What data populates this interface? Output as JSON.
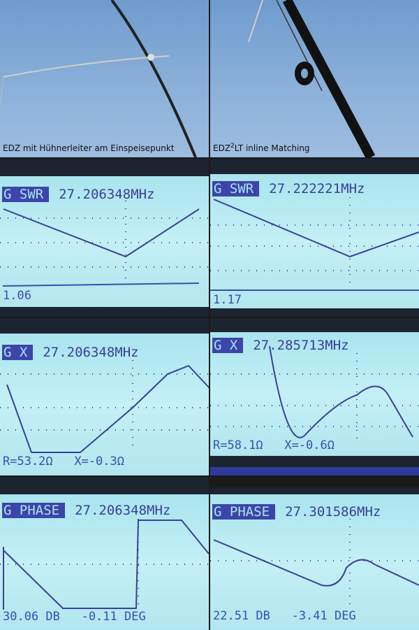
{
  "photos": [
    {
      "caption": "EDZ mit Hühnerleiter am Einspeisepunkt"
    },
    {
      "caption_pre": "EDZ",
      "caption_sup": "2",
      "caption_post": "LT inline Matching"
    }
  ],
  "screens": [
    {
      "mode": "G SWR",
      "freq": "27.206348MHz",
      "footer": "1.06"
    },
    {
      "mode": "G SWR",
      "freq": "27.222221MHz",
      "footer": "1.17"
    },
    {
      "mode": "G X",
      "freq": "27.206348MHz",
      "footer": "R=53.2Ω   X=-0.3Ω"
    },
    {
      "mode": "G X",
      "freq": "27.285713MHz",
      "footer": "R=58.1Ω   X=-0.6Ω"
    },
    {
      "mode": "G PHASE",
      "freq": "27.206348MHz",
      "footer": "30.06 DB   -0.11 DEG"
    },
    {
      "mode": "G PHASE",
      "freq": "27.301586MHz",
      "footer": "22.51 DB   -3.41 DEG"
    }
  ],
  "colors": {
    "lcd": "#b8eaf0",
    "trace": "#3a3f9a"
  }
}
